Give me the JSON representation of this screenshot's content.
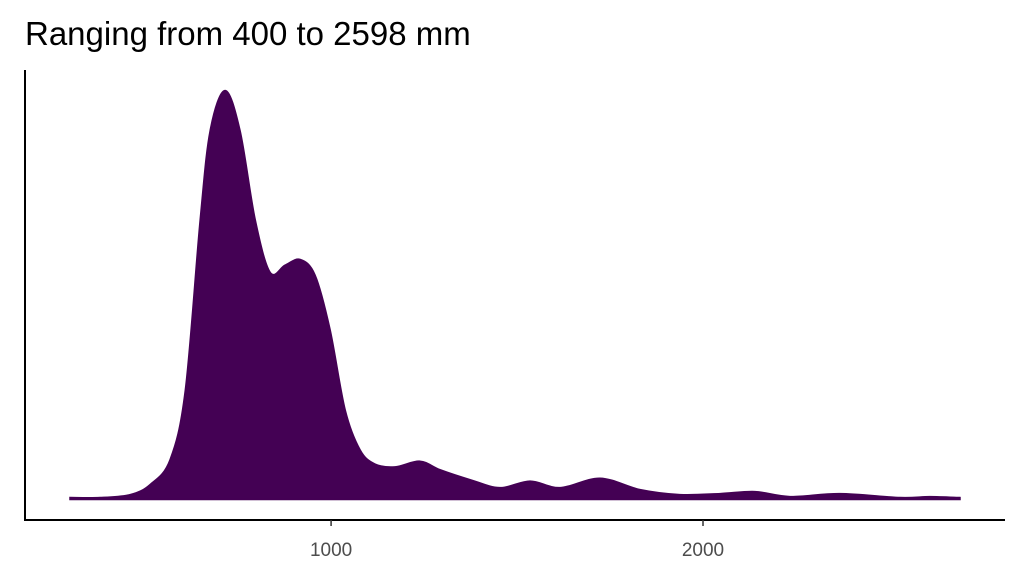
{
  "chart_data": {
    "type": "area",
    "title": "Ranging from 400 to 2598 mm",
    "x": [
      298,
      379,
      460,
      513,
      567,
      608,
      648,
      675,
      715,
      755,
      796,
      836,
      876,
      917,
      957,
      997,
      1038,
      1078,
      1118,
      1172,
      1239,
      1293,
      1374,
      1454,
      1535,
      1616,
      1723,
      1831,
      1938,
      2046,
      2140,
      2234,
      2368,
      2530,
      2610,
      2691
    ],
    "values": [
      1.4e-05,
      1.4e-05,
      3.5e-05,
      0.000105,
      0.00028,
      0.00077,
      0.00197,
      0.0026,
      0.00288,
      0.0026,
      0.00197,
      0.0016,
      0.00165,
      0.00169,
      0.00158,
      0.0012,
      0.00063,
      0.00035,
      0.00025,
      0.00023,
      0.00027,
      0.00021,
      0.00014,
      8.4e-05,
      0.00013,
      8.4e-05,
      0.00015,
      7e-05,
      3.5e-05,
      4.2e-05,
      5.6e-05,
      2.1e-05,
      4.2e-05,
      1.4e-05,
      2.1e-05,
      1.4e-05
    ],
    "color": "#440154",
    "xlim": [
      177,
      2812
    ],
    "xticks": [
      1000,
      2000
    ],
    "ylim": [
      -0.000144,
      0.003024
    ]
  }
}
